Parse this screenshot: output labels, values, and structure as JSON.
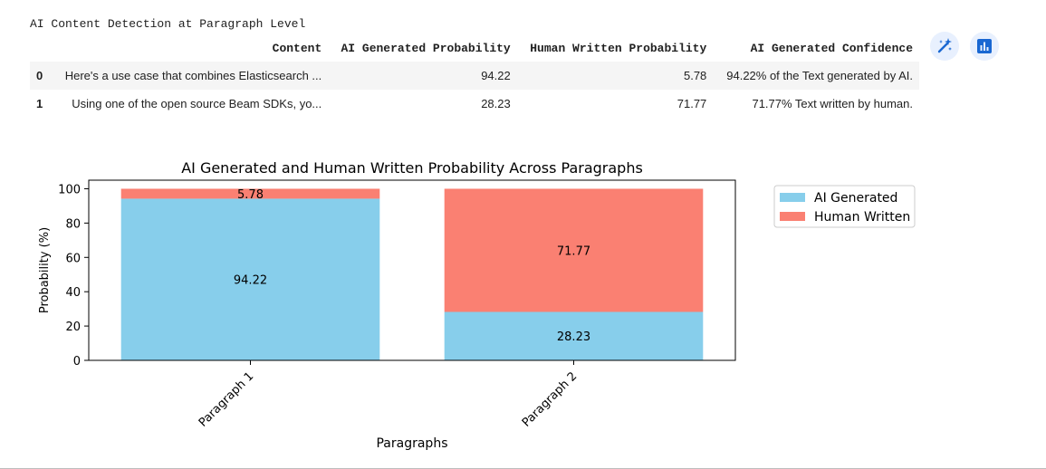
{
  "table": {
    "caption": "AI Content Detection at Paragraph Level",
    "columns": [
      "Content",
      "AI Generated Probability",
      "Human Written Probability",
      "AI Generated Confidence"
    ],
    "rows": [
      {
        "index": "0",
        "content": "Here's a use case that combines Elasticsearch ...",
        "ai": "94.22",
        "human": "5.78",
        "confidence": "94.22% of the Text generated by AI."
      },
      {
        "index": "1",
        "content": "Using one of the open source Beam SDKs, yo...",
        "ai": "28.23",
        "human": "71.77",
        "confidence": "71.77% Text written by human."
      }
    ]
  },
  "toolbar": {
    "magic_icon": "magic-wand-icon",
    "chart_icon": "bar-chart-icon",
    "accent": "#1967d2",
    "button_bg": "#e8f0fe"
  },
  "chart_data": {
    "type": "bar",
    "stacked": true,
    "title": "AI Generated and Human Written Probability Across Paragraphs",
    "xlabel": "Paragraphs",
    "ylabel": "Probability (%)",
    "categories": [
      "Paragraph 1",
      "Paragraph 2"
    ],
    "series": [
      {
        "name": "AI Generated",
        "values": [
          94.22,
          28.23
        ],
        "color": "#87ceeb"
      },
      {
        "name": "Human Written",
        "values": [
          5.78,
          71.77
        ],
        "color": "#fa8072"
      }
    ],
    "ylim": [
      0,
      105
    ],
    "yticks": [
      0,
      20,
      40,
      60,
      80,
      100
    ],
    "grid": false,
    "legend": "top-right outside plot"
  }
}
